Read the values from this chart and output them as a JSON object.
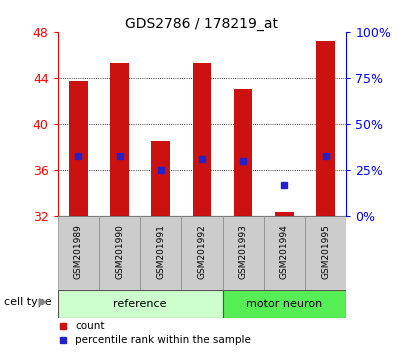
{
  "title": "GDS2786 / 178219_at",
  "samples": [
    "GSM201989",
    "GSM201990",
    "GSM201991",
    "GSM201992",
    "GSM201993",
    "GSM201994",
    "GSM201995"
  ],
  "bar_values": [
    43.7,
    45.3,
    38.5,
    45.3,
    43.0,
    32.4,
    47.2
  ],
  "percentile_values": [
    37.2,
    37.2,
    36.0,
    37.0,
    36.8,
    34.7,
    37.2
  ],
  "bar_color": "#cc1111",
  "percentile_color": "#2222cc",
  "ymin": 32,
  "ymax": 48,
  "yticks": [
    32,
    36,
    40,
    44,
    48
  ],
  "y2ticks": [
    0,
    25,
    50,
    75,
    100
  ],
  "y2labels": [
    "0%",
    "25%",
    "50%",
    "75%",
    "100%"
  ],
  "groups": [
    {
      "label": "reference",
      "indices": [
        0,
        1,
        2,
        3
      ]
    },
    {
      "label": "motor neuron",
      "indices": [
        4,
        5,
        6
      ]
    }
  ],
  "ref_color": "#ccffcc",
  "motor_color": "#55ee55",
  "legend_count_label": "count",
  "legend_percentile_label": "percentile rank within the sample",
  "bar_width": 0.45,
  "background_color": "#ffffff",
  "tick_bg_color": "#cccccc"
}
